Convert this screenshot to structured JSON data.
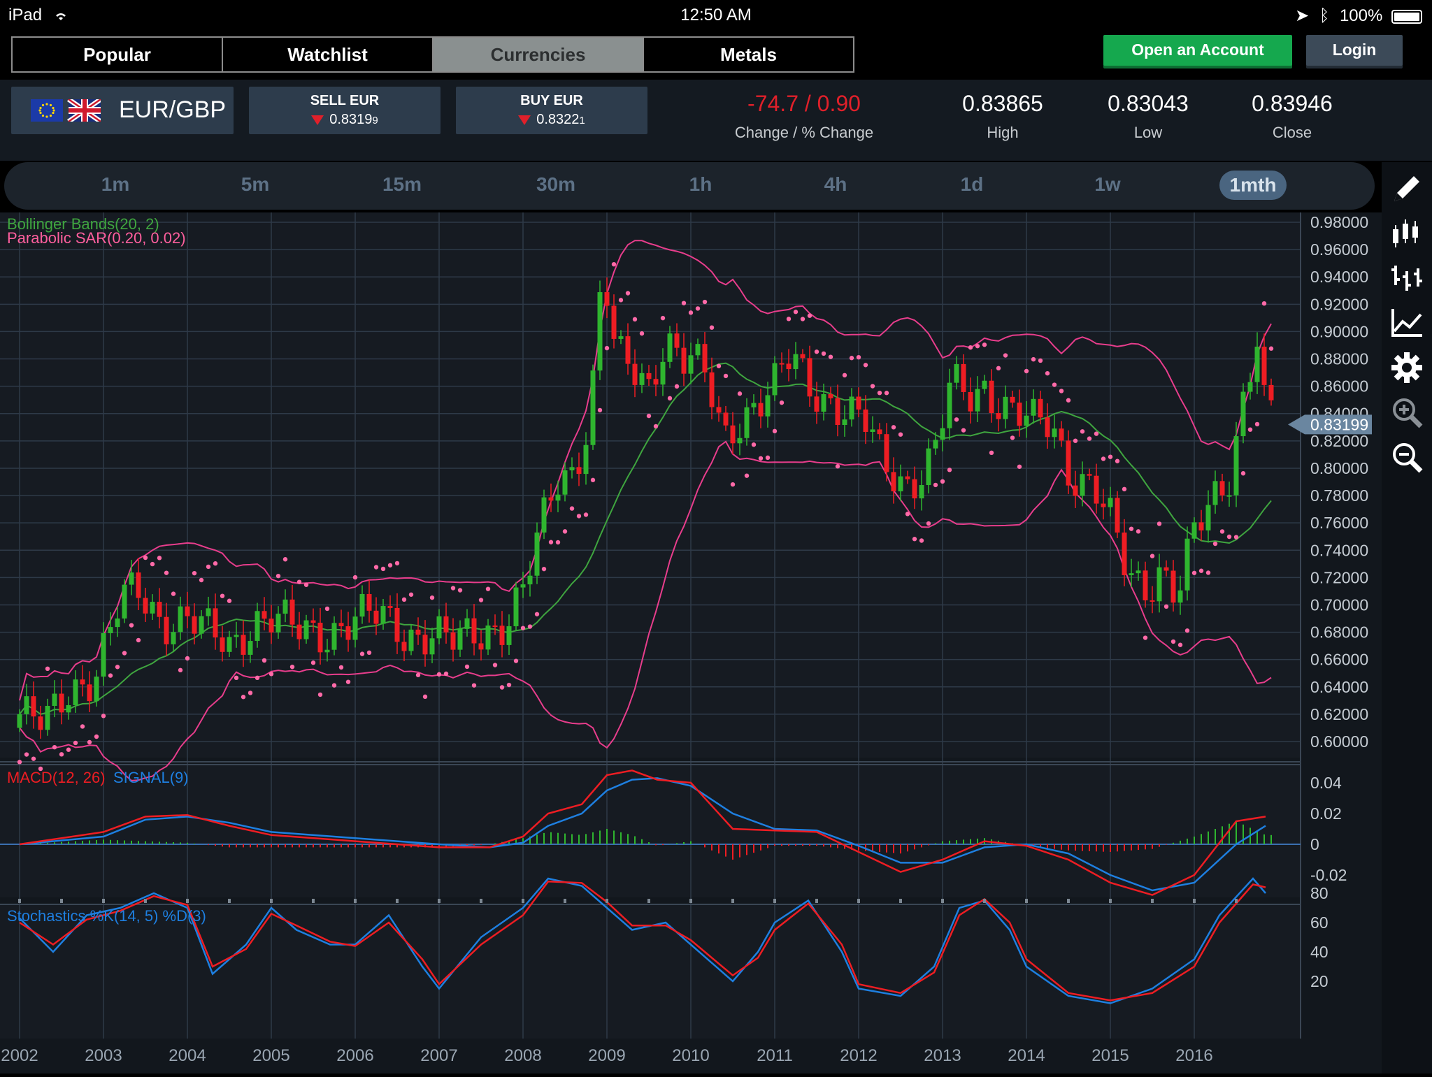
{
  "status_bar": {
    "device": "iPad",
    "time": "12:50 AM",
    "battery": "100%"
  },
  "tabs": [
    {
      "label": "Popular",
      "active": false
    },
    {
      "label": "Watchlist",
      "active": false
    },
    {
      "label": "Currencies",
      "active": true
    },
    {
      "label": "Metals",
      "active": false
    }
  ],
  "actions": {
    "open_account": "Open an Account",
    "login": "Login"
  },
  "instrument": {
    "pair": "EUR/GBP",
    "base_flag": "eu-flag",
    "quote_flag": "uk-flag"
  },
  "sell": {
    "label": "SELL EUR",
    "price_main": "0.8319",
    "price_pip": "9",
    "direction": "down"
  },
  "buy": {
    "label": "BUY EUR",
    "price_main": "0.8322",
    "price_pip": "1",
    "direction": "down"
  },
  "stats": [
    {
      "value": "-74.7 / 0.90",
      "label": "Change / % Change",
      "color": "#e0202a"
    },
    {
      "value": "0.83865",
      "label": "High",
      "color": "#ffffff"
    },
    {
      "value": "0.83043",
      "label": "Low",
      "color": "#ffffff"
    },
    {
      "value": "0.83946",
      "label": "Close",
      "color": "#ffffff"
    }
  ],
  "timeframes": [
    "1m",
    "5m",
    "15m",
    "30m",
    "1h",
    "4h",
    "1d",
    "1w",
    "1mth"
  ],
  "active_timeframe": "1mth",
  "toolbar_icons": [
    "pencil-icon",
    "candlestick-icon",
    "ohlc-bars-icon",
    "line-chart-icon",
    "gear-icon",
    "zoom-in-icon",
    "zoom-out-icon"
  ],
  "chart_data": {
    "type": "candlestick",
    "main_indicators": [
      {
        "label": "Bollinger Bands(20, 2)",
        "color": "#3fa53f"
      },
      {
        "label": "Parabolic SAR(0.20, 0.02)",
        "color": "#ff5f9e"
      }
    ],
    "y_axis": {
      "min": 0.6,
      "max": 0.98,
      "ticks": [
        "0.98000",
        "0.96000",
        "0.94000",
        "0.92000",
        "0.90000",
        "0.88000",
        "0.86000",
        "0.84000",
        "0.82000",
        "0.80000",
        "0.78000",
        "0.76000",
        "0.74000",
        "0.72000",
        "0.70000",
        "0.68000",
        "0.66000",
        "0.64000",
        "0.62000",
        "0.60000"
      ]
    },
    "current_price": "0.83199",
    "x_ticks": [
      "2002",
      "2003",
      "2004",
      "2005",
      "2006",
      "2007",
      "2008",
      "2009",
      "2010",
      "2011",
      "2012",
      "2013",
      "2014",
      "2015",
      "2016"
    ],
    "price_path": [
      [
        2002.0,
        0.62
      ],
      [
        2002.3,
        0.61
      ],
      [
        2002.6,
        0.64
      ],
      [
        2002.9,
        0.65
      ],
      [
        2003.2,
        0.7
      ],
      [
        2003.4,
        0.71
      ],
      [
        2003.7,
        0.69
      ],
      [
        2004.0,
        0.69
      ],
      [
        2004.2,
        0.68
      ],
      [
        2004.5,
        0.67
      ],
      [
        2004.8,
        0.69
      ],
      [
        2005.0,
        0.69
      ],
      [
        2005.3,
        0.68
      ],
      [
        2005.6,
        0.68
      ],
      [
        2006.0,
        0.69
      ],
      [
        2006.3,
        0.69
      ],
      [
        2006.6,
        0.68
      ],
      [
        2006.9,
        0.68
      ],
      [
        2007.2,
        0.67
      ],
      [
        2007.5,
        0.68
      ],
      [
        2007.8,
        0.69
      ],
      [
        2008.0,
        0.71
      ],
      [
        2008.2,
        0.75
      ],
      [
        2008.4,
        0.79
      ],
      [
        2008.6,
        0.8
      ],
      [
        2008.8,
        0.84
      ],
      [
        2008.95,
        0.95
      ],
      [
        2009.1,
        0.88
      ],
      [
        2009.3,
        0.87
      ],
      [
        2009.5,
        0.86
      ],
      [
        2009.7,
        0.9
      ],
      [
        2009.9,
        0.88
      ],
      [
        2010.0,
        0.88
      ],
      [
        2010.2,
        0.86
      ],
      [
        2010.4,
        0.82
      ],
      [
        2010.6,
        0.84
      ],
      [
        2010.8,
        0.85
      ],
      [
        2011.0,
        0.86
      ],
      [
        2011.2,
        0.88
      ],
      [
        2011.4,
        0.86
      ],
      [
        2011.7,
        0.85
      ],
      [
        2011.9,
        0.84
      ],
      [
        2012.1,
        0.83
      ],
      [
        2012.3,
        0.8
      ],
      [
        2012.6,
        0.79
      ],
      [
        2012.9,
        0.81
      ],
      [
        2013.1,
        0.86
      ],
      [
        2013.3,
        0.85
      ],
      [
        2013.5,
        0.86
      ],
      [
        2013.7,
        0.85
      ],
      [
        2013.9,
        0.84
      ],
      [
        2014.1,
        0.83
      ],
      [
        2014.3,
        0.83
      ],
      [
        2014.5,
        0.8
      ],
      [
        2014.8,
        0.79
      ],
      [
        2015.0,
        0.76
      ],
      [
        2015.2,
        0.72
      ],
      [
        2015.4,
        0.71
      ],
      [
        2015.6,
        0.73
      ],
      [
        2015.8,
        0.71
      ],
      [
        2016.0,
        0.75
      ],
      [
        2016.2,
        0.77
      ],
      [
        2016.4,
        0.79
      ],
      [
        2016.6,
        0.86
      ],
      [
        2016.75,
        0.9
      ],
      [
        2016.85,
        0.84
      ]
    ],
    "macd": {
      "label_macd": "MACD(12, 26)",
      "label_signal": "SIGNAL(9)",
      "ticks": [
        "0.04",
        "0.02",
        "0",
        "-0.02"
      ],
      "macd_line": [
        [
          2002.0,
          0.0
        ],
        [
          2003.0,
          0.008
        ],
        [
          2003.5,
          0.018
        ],
        [
          2004.0,
          0.019
        ],
        [
          2004.5,
          0.012
        ],
        [
          2005.0,
          0.006
        ],
        [
          2006.0,
          0.002
        ],
        [
          2007.0,
          -0.002
        ],
        [
          2007.6,
          -0.002
        ],
        [
          2008.0,
          0.005
        ],
        [
          2008.3,
          0.02
        ],
        [
          2008.7,
          0.026
        ],
        [
          2009.0,
          0.045
        ],
        [
          2009.3,
          0.048
        ],
        [
          2009.6,
          0.042
        ],
        [
          2010.0,
          0.04
        ],
        [
          2010.5,
          0.01
        ],
        [
          2011.0,
          0.009
        ],
        [
          2011.5,
          0.008
        ],
        [
          2012.0,
          -0.005
        ],
        [
          2012.5,
          -0.018
        ],
        [
          2013.0,
          -0.01
        ],
        [
          2013.5,
          0.002
        ],
        [
          2014.0,
          -0.001
        ],
        [
          2014.5,
          -0.01
        ],
        [
          2015.0,
          -0.025
        ],
        [
          2015.5,
          -0.033
        ],
        [
          2016.0,
          -0.02
        ],
        [
          2016.5,
          0.015
        ],
        [
          2016.85,
          0.018
        ]
      ],
      "signal_line": [
        [
          2002.0,
          0.0
        ],
        [
          2003.0,
          0.005
        ],
        [
          2003.5,
          0.016
        ],
        [
          2004.0,
          0.018
        ],
        [
          2004.5,
          0.014
        ],
        [
          2005.0,
          0.008
        ],
        [
          2006.0,
          0.004
        ],
        [
          2007.0,
          0.0
        ],
        [
          2007.6,
          -0.002
        ],
        [
          2008.0,
          0.001
        ],
        [
          2008.3,
          0.012
        ],
        [
          2008.7,
          0.02
        ],
        [
          2009.0,
          0.035
        ],
        [
          2009.3,
          0.042
        ],
        [
          2009.6,
          0.043
        ],
        [
          2010.0,
          0.038
        ],
        [
          2010.5,
          0.02
        ],
        [
          2011.0,
          0.01
        ],
        [
          2011.5,
          0.009
        ],
        [
          2012.0,
          -0.001
        ],
        [
          2012.5,
          -0.012
        ],
        [
          2013.0,
          -0.012
        ],
        [
          2013.5,
          -0.002
        ],
        [
          2014.0,
          0.0
        ],
        [
          2014.5,
          -0.006
        ],
        [
          2015.0,
          -0.02
        ],
        [
          2015.5,
          -0.03
        ],
        [
          2016.0,
          -0.025
        ],
        [
          2016.5,
          0.0
        ],
        [
          2016.85,
          0.012
        ]
      ]
    },
    "stochastics": {
      "label": "Stochastics %K(14, 5) %D(3)",
      "ticks": [
        "80",
        "60",
        "40",
        "20"
      ],
      "k_line": [
        [
          2002.0,
          63
        ],
        [
          2002.4,
          40
        ],
        [
          2002.8,
          65
        ],
        [
          2003.2,
          70
        ],
        [
          2003.6,
          80
        ],
        [
          2004.0,
          70
        ],
        [
          2004.3,
          25
        ],
        [
          2004.7,
          45
        ],
        [
          2005.0,
          70
        ],
        [
          2005.3,
          55
        ],
        [
          2005.7,
          45
        ],
        [
          2006.0,
          45
        ],
        [
          2006.4,
          65
        ],
        [
          2006.8,
          30
        ],
        [
          2007.0,
          15
        ],
        [
          2007.5,
          50
        ],
        [
          2008.0,
          70
        ],
        [
          2008.3,
          90
        ],
        [
          2008.7,
          85
        ],
        [
          2009.0,
          70
        ],
        [
          2009.3,
          55
        ],
        [
          2009.7,
          60
        ],
        [
          2010.0,
          45
        ],
        [
          2010.5,
          20
        ],
        [
          2010.8,
          40
        ],
        [
          2011.0,
          60
        ],
        [
          2011.4,
          75
        ],
        [
          2011.8,
          40
        ],
        [
          2012.0,
          15
        ],
        [
          2012.5,
          10
        ],
        [
          2012.9,
          30
        ],
        [
          2013.2,
          70
        ],
        [
          2013.5,
          75
        ],
        [
          2013.8,
          55
        ],
        [
          2014.0,
          30
        ],
        [
          2014.5,
          10
        ],
        [
          2015.0,
          5
        ],
        [
          2015.5,
          15
        ],
        [
          2016.0,
          35
        ],
        [
          2016.3,
          65
        ],
        [
          2016.7,
          90
        ],
        [
          2016.85,
          80
        ]
      ],
      "d_line": [
        [
          2002.0,
          60
        ],
        [
          2002.4,
          45
        ],
        [
          2002.8,
          62
        ],
        [
          2003.2,
          68
        ],
        [
          2003.6,
          78
        ],
        [
          2004.0,
          72
        ],
        [
          2004.3,
          30
        ],
        [
          2004.7,
          42
        ],
        [
          2005.0,
          66
        ],
        [
          2005.3,
          58
        ],
        [
          2005.7,
          47
        ],
        [
          2006.0,
          44
        ],
        [
          2006.4,
          60
        ],
        [
          2006.8,
          35
        ],
        [
          2007.0,
          18
        ],
        [
          2007.5,
          45
        ],
        [
          2008.0,
          65
        ],
        [
          2008.3,
          88
        ],
        [
          2008.7,
          87
        ],
        [
          2009.0,
          74
        ],
        [
          2009.3,
          58
        ],
        [
          2009.7,
          58
        ],
        [
          2010.0,
          48
        ],
        [
          2010.5,
          24
        ],
        [
          2010.8,
          36
        ],
        [
          2011.0,
          55
        ],
        [
          2011.4,
          73
        ],
        [
          2011.8,
          45
        ],
        [
          2012.0,
          18
        ],
        [
          2012.5,
          12
        ],
        [
          2012.9,
          26
        ],
        [
          2013.2,
          65
        ],
        [
          2013.5,
          76
        ],
        [
          2013.8,
          60
        ],
        [
          2014.0,
          35
        ],
        [
          2014.5,
          12
        ],
        [
          2015.0,
          7
        ],
        [
          2015.5,
          12
        ],
        [
          2016.0,
          30
        ],
        [
          2016.3,
          60
        ],
        [
          2016.7,
          86
        ],
        [
          2016.85,
          84
        ]
      ]
    }
  }
}
